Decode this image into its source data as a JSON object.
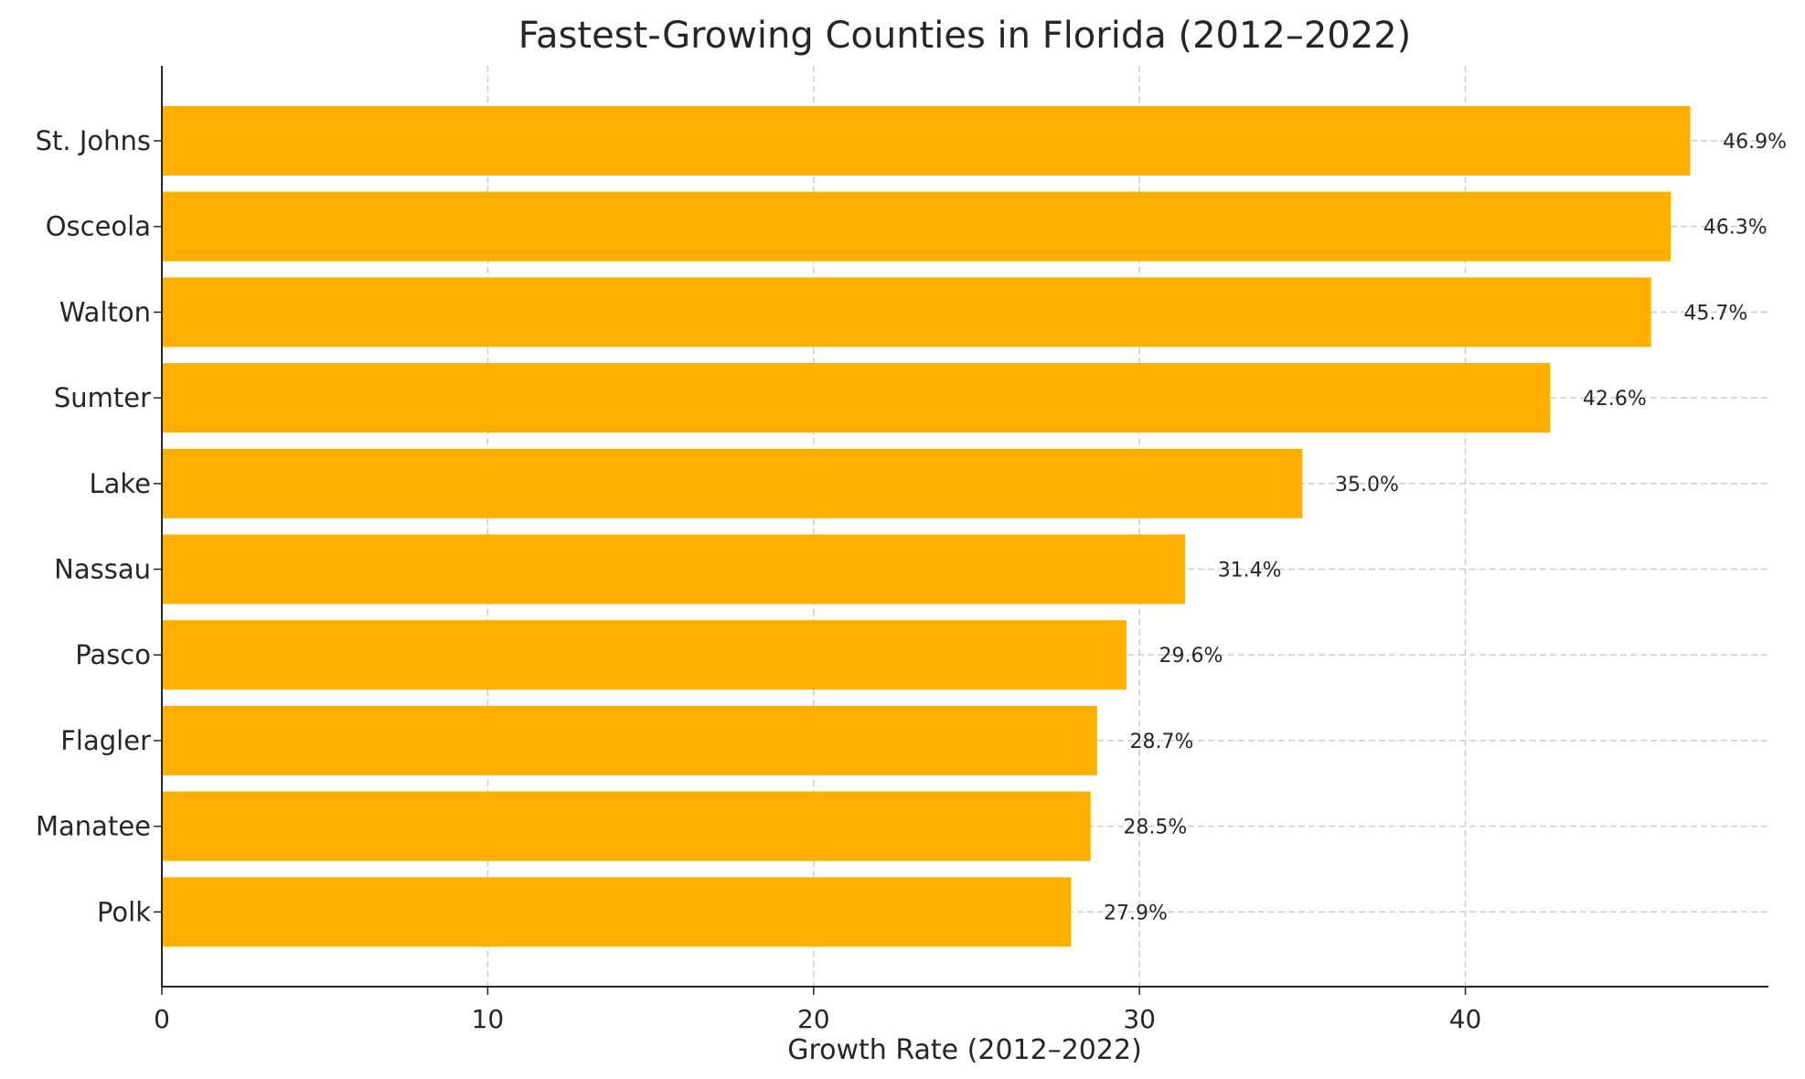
{
  "chart_data": {
    "type": "bar",
    "orientation": "horizontal",
    "title": "Fastest-Growing Counties in Florida (2012–2022)",
    "xlabel": "Growth Rate (2012–2022)",
    "ylabel": "",
    "categories": [
      "St. Johns",
      "Osceola",
      "Walton",
      "Sumter",
      "Lake",
      "Nassau",
      "Pasco",
      "Flagler",
      "Manatee",
      "Polk"
    ],
    "values": [
      46.9,
      46.3,
      45.7,
      42.6,
      35.0,
      31.4,
      29.6,
      28.7,
      28.5,
      27.9
    ],
    "data_labels": [
      "46.9%",
      "46.3%",
      "45.7%",
      "42.6%",
      "35.0%",
      "31.4%",
      "29.6%",
      "28.7%",
      "28.5%",
      "27.9%"
    ],
    "xlim": [
      0,
      49.3
    ],
    "xticks": [
      0,
      10,
      20,
      30,
      40
    ],
    "xtick_labels": [
      "0",
      "10",
      "20",
      "30",
      "40"
    ],
    "grid": true,
    "grid_style": "dashed",
    "bar_color": "#FFAF00",
    "legend": "none"
  }
}
